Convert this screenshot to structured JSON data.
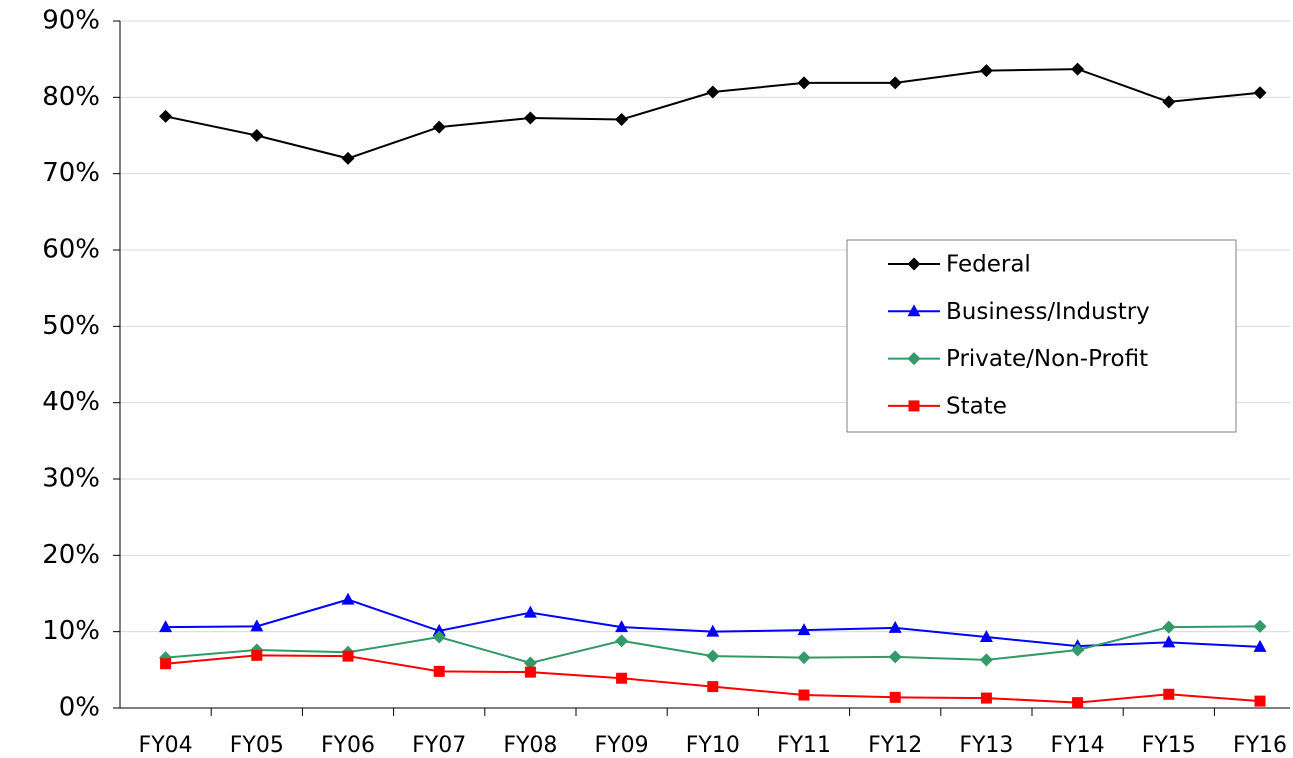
{
  "chart_data": {
    "type": "line",
    "categories": [
      "FY04",
      "FY05",
      "FY06",
      "FY07",
      "FY08",
      "FY09",
      "FY10",
      "FY11",
      "FY12",
      "FY13",
      "FY14",
      "FY15",
      "FY16"
    ],
    "series": [
      {
        "name": "Federal",
        "color": "#000000",
        "marker": "diamond",
        "values": [
          77.5,
          75.0,
          72.0,
          76.1,
          77.3,
          77.1,
          80.7,
          81.9,
          81.9,
          83.5,
          83.7,
          79.4,
          80.6
        ]
      },
      {
        "name": "Business/Industry",
        "color": "#0000ff",
        "marker": "triangle",
        "values": [
          10.6,
          10.7,
          14.2,
          10.1,
          12.5,
          10.6,
          10.0,
          10.2,
          10.5,
          9.3,
          8.1,
          8.6,
          8.0
        ]
      },
      {
        "name": "Private/Non-Profit",
        "color": "#339966",
        "marker": "diamond",
        "values": [
          6.6,
          7.6,
          7.3,
          9.3,
          5.9,
          8.8,
          6.8,
          6.6,
          6.7,
          6.3,
          7.6,
          10.6,
          10.7
        ]
      },
      {
        "name": "State",
        "color": "#ff0000",
        "marker": "square",
        "values": [
          5.8,
          6.9,
          6.8,
          4.8,
          4.7,
          3.9,
          2.8,
          1.7,
          1.4,
          1.3,
          0.7,
          1.8,
          0.9
        ]
      }
    ],
    "ylim": [
      0,
      90
    ],
    "yticks": [
      {
        "value": 0,
        "label": "0%"
      },
      {
        "value": 10,
        "label": "10%"
      },
      {
        "value": 20,
        "label": "20%"
      },
      {
        "value": 30,
        "label": "30%"
      },
      {
        "value": 40,
        "label": "40%"
      },
      {
        "value": 50,
        "label": "50%"
      },
      {
        "value": 60,
        "label": "60%"
      },
      {
        "value": 70,
        "label": "70%"
      },
      {
        "value": 80,
        "label": "80%"
      },
      {
        "value": 90,
        "label": "90%"
      }
    ],
    "grid": true,
    "legend": "right"
  }
}
